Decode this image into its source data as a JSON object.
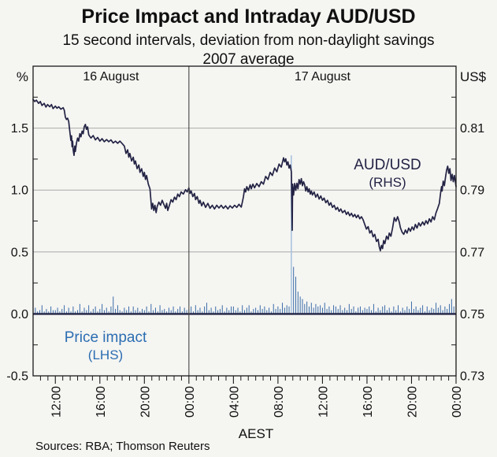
{
  "header": {
    "title": "Price Impact and Intraday AUD/USD",
    "subtitle_lines": [
      "15 second intervals, deviation from non-daylight savings",
      "2007 average"
    ]
  },
  "footer": {
    "sources": "Sources: RBA; Thomson Reuters"
  },
  "colors": {
    "background": "#f5f5f2",
    "border": "#1a1a1a",
    "gridline": "#aaaaaa",
    "divider": "#444444",
    "aud_line": "#232345",
    "impact_spike": "#3a6ca8",
    "impact_big_spike": "#a9c3de",
    "impact_label": "#2c6db1",
    "zero_line": "#232345",
    "text": "#101010"
  },
  "chart_data": {
    "type": "line",
    "title": "Price Impact and Intraday AUD/USD",
    "subtitle": "15 second intervals, deviation from non-daylight savings 2007 average",
    "xlabel": "AEST",
    "x_axis": {
      "label": "AEST",
      "hours_range": [
        10,
        48
      ],
      "hours_reference": "hours from 00:00 16 August",
      "major_tick_hours": [
        12,
        16,
        20,
        24,
        28,
        32,
        36,
        40,
        44,
        48
      ],
      "major_tick_labels": [
        "12:00",
        "16:00",
        "20:00",
        "00:00",
        "04:00",
        "08:00",
        "12:00",
        "16:00",
        "20:00",
        "00:00"
      ],
      "minor_tick_step_hours": 0.6667,
      "divider_at_hour": 24,
      "day_labels": [
        {
          "text": "16 August",
          "span_hours": [
            10,
            24
          ]
        },
        {
          "text": "17 August",
          "span_hours": [
            24,
            48
          ]
        }
      ]
    },
    "left_axis": {
      "title": "%",
      "range": [
        -0.5,
        2.0
      ],
      "gridline_values": [
        0.0,
        0.5,
        1.0,
        1.5
      ],
      "tick_labels": [
        {
          "value": 1.5,
          "label": "1.5"
        },
        {
          "value": 1.0,
          "label": "1.0"
        },
        {
          "value": 0.5,
          "label": "0.5"
        },
        {
          "value": 0.0,
          "label": "0.0"
        },
        {
          "value": -0.5,
          "label": "-0.5"
        }
      ],
      "minor_tick_values": [
        1.75,
        1.25,
        0.75,
        0.25,
        -0.25
      ]
    },
    "right_axis": {
      "title": "US$",
      "range": [
        0.73,
        0.83
      ],
      "tick_labels": [
        {
          "value": 0.81,
          "label": "0.81"
        },
        {
          "value": 0.79,
          "label": "0.79"
        },
        {
          "value": 0.77,
          "label": "0.77"
        },
        {
          "value": 0.75,
          "label": "0.75"
        },
        {
          "value": 0.73,
          "label": "0.73"
        }
      ],
      "minor_tick_values": [
        0.82,
        0.8,
        0.78,
        0.76,
        0.74
      ]
    },
    "series": [
      {
        "name": "aud-usd",
        "label": "AUD/USD",
        "sub_label": "(RHS)",
        "axis": "right",
        "style": "line",
        "t": [
          10.0,
          10.15,
          10.3,
          10.5,
          10.65,
          10.8,
          11.0,
          11.15,
          11.3,
          11.5,
          11.65,
          11.8,
          12.0,
          12.15,
          12.3,
          12.5,
          12.7,
          12.8,
          12.9,
          13.0,
          13.1,
          13.2,
          13.3,
          13.4,
          13.45,
          13.5,
          13.55,
          13.6,
          13.68,
          13.75,
          13.8,
          13.9,
          14.0,
          14.1,
          14.2,
          14.3,
          14.4,
          14.5,
          14.6,
          14.7,
          14.8,
          14.9,
          15.0,
          15.2,
          15.4,
          15.6,
          15.8,
          16.0,
          16.2,
          16.4,
          16.6,
          16.8,
          17.0,
          17.2,
          17.4,
          17.6,
          17.8,
          18.0,
          18.2,
          18.35,
          18.5,
          18.6,
          18.7,
          18.85,
          19.0,
          19.1,
          19.2,
          19.35,
          19.5,
          19.6,
          19.75,
          19.9,
          20.0,
          20.1,
          20.2,
          20.35,
          20.5,
          20.6,
          20.65,
          20.75,
          20.85,
          20.95,
          21.05,
          21.15,
          21.3,
          21.45,
          21.6,
          21.75,
          21.9,
          22.0,
          22.1,
          22.25,
          22.4,
          22.55,
          22.7,
          22.85,
          23.0,
          23.15,
          23.3,
          23.5,
          23.7,
          23.85,
          24.0,
          24.1,
          24.2,
          24.35,
          24.5,
          24.6,
          24.75,
          24.9,
          25.0,
          25.15,
          25.3,
          25.5,
          25.7,
          25.9,
          26.1,
          26.3,
          26.5,
          26.7,
          26.9,
          27.1,
          27.3,
          27.5,
          27.7,
          27.9,
          28.1,
          28.3,
          28.5,
          28.7,
          28.8,
          28.9,
          29.0,
          29.1,
          29.2,
          29.35,
          29.5,
          29.6,
          29.75,
          29.9,
          30.1,
          30.3,
          30.5,
          30.7,
          30.9,
          31.1,
          31.3,
          31.5,
          31.7,
          31.9,
          32.1,
          32.3,
          32.5,
          32.6,
          32.7,
          32.8,
          32.9,
          33.0,
          33.1,
          33.2,
          33.28,
          33.32,
          33.4,
          33.5,
          33.6,
          33.7,
          33.8,
          33.9,
          34.0,
          34.1,
          34.2,
          34.3,
          34.4,
          34.5,
          34.6,
          34.7,
          34.8,
          34.9,
          35.0,
          35.1,
          35.25,
          35.4,
          35.55,
          35.7,
          35.85,
          36.0,
          36.15,
          36.3,
          36.45,
          36.6,
          36.75,
          36.9,
          37.05,
          37.2,
          37.35,
          37.5,
          37.65,
          37.8,
          38.0,
          38.15,
          38.3,
          38.45,
          38.6,
          38.75,
          38.9,
          39.05,
          39.2,
          39.35,
          39.5,
          39.65,
          39.8,
          39.95,
          40.1,
          40.25,
          40.4,
          40.55,
          40.7,
          40.85,
          41.0,
          41.1,
          41.2,
          41.3,
          41.4,
          41.5,
          41.6,
          41.75,
          41.9,
          42.0,
          42.15,
          42.3,
          42.45,
          42.6,
          42.75,
          42.9,
          43.0,
          43.15,
          43.3,
          43.45,
          43.6,
          43.75,
          43.9,
          44.05,
          44.2,
          44.35,
          44.5,
          44.65,
          44.8,
          45.0,
          45.15,
          45.3,
          45.45,
          45.6,
          45.75,
          45.9,
          46.05,
          46.2,
          46.35,
          46.5,
          46.6,
          46.7,
          46.75,
          46.85,
          46.95,
          47.05,
          47.15,
          47.25,
          47.35,
          47.45,
          47.55,
          47.65,
          47.75,
          47.85,
          47.95,
          48.0
        ],
        "v": [
          0.8193,
          0.8186,
          0.819,
          0.818,
          0.8186,
          0.8173,
          0.818,
          0.8168,
          0.8176,
          0.8169,
          0.8176,
          0.8163,
          0.8171,
          0.8164,
          0.8169,
          0.8161,
          0.8166,
          0.8158,
          0.8135,
          0.8128,
          0.8132,
          0.8122,
          0.809,
          0.806,
          0.8075,
          0.804,
          0.8058,
          0.803,
          0.8012,
          0.8042,
          0.8025,
          0.8052,
          0.8068,
          0.8058,
          0.8082,
          0.8072,
          0.809,
          0.8082,
          0.8105,
          0.8112,
          0.8096,
          0.8104,
          0.8078,
          0.8068,
          0.8076,
          0.8062,
          0.807,
          0.8058,
          0.8066,
          0.8056,
          0.8063,
          0.8056,
          0.8062,
          0.8052,
          0.8058,
          0.8051,
          0.8058,
          0.805,
          0.8042,
          0.8018,
          0.803,
          0.8006,
          0.8018,
          0.7994,
          0.8006,
          0.7984,
          0.7994,
          0.7969,
          0.7981,
          0.7957,
          0.7969,
          0.7944,
          0.7957,
          0.7934,
          0.7947,
          0.7919,
          0.7904,
          0.7861,
          0.7839,
          0.7857,
          0.7834,
          0.7851,
          0.7827,
          0.7847,
          0.7861,
          0.7851,
          0.7867,
          0.7854,
          0.7841,
          0.7857,
          0.7834,
          0.7851,
          0.7869,
          0.7861,
          0.7877,
          0.7869,
          0.7887,
          0.7879,
          0.7894,
          0.7887,
          0.7901,
          0.7894,
          0.7907,
          0.7889,
          0.7897,
          0.7879,
          0.7889,
          0.7869,
          0.7879,
          0.7857,
          0.7867,
          0.7849,
          0.7861,
          0.7844,
          0.7857,
          0.7841,
          0.7851,
          0.7839,
          0.7851,
          0.7842,
          0.7851,
          0.7841,
          0.7849,
          0.7839,
          0.7849,
          0.7842,
          0.7851,
          0.7844,
          0.7854,
          0.7845,
          0.7861,
          0.7879,
          0.7904,
          0.7894,
          0.7911,
          0.7899,
          0.7917,
          0.7904,
          0.7919,
          0.7907,
          0.7921,
          0.7911,
          0.7927,
          0.7919,
          0.7944,
          0.7934,
          0.7957,
          0.7947,
          0.7971,
          0.7959,
          0.7984,
          0.7974,
          0.8004,
          0.7991,
          0.8001,
          0.7981,
          0.7991,
          0.7971,
          0.7981,
          0.7959,
          0.777,
          0.7919,
          0.7884,
          0.7921,
          0.7899,
          0.7922,
          0.7904,
          0.7934,
          0.7919,
          0.7937,
          0.7914,
          0.7927,
          0.7917,
          0.7897,
          0.7911,
          0.7894,
          0.7904,
          0.7887,
          0.7897,
          0.7884,
          0.7894,
          0.7877,
          0.7887,
          0.7871,
          0.7881,
          0.7867,
          0.7874,
          0.7859,
          0.7867,
          0.7851,
          0.7859,
          0.7844,
          0.7851,
          0.7837,
          0.7844,
          0.7831,
          0.7839,
          0.7827,
          0.7834,
          0.7821,
          0.7829,
          0.7817,
          0.7825,
          0.7814,
          0.7821,
          0.7811,
          0.7819,
          0.7807,
          0.7814,
          0.7804,
          0.7789,
          0.7774,
          0.7782,
          0.7761,
          0.7769,
          0.7749,
          0.7757,
          0.7734,
          0.7741,
          0.7717,
          0.7704,
          0.7721,
          0.7711,
          0.7737,
          0.7727,
          0.7751,
          0.7741,
          0.7761,
          0.7751,
          0.7777,
          0.7811,
          0.7799,
          0.7814,
          0.7797,
          0.7779,
          0.7764,
          0.7757,
          0.7771,
          0.7761,
          0.7777,
          0.7767,
          0.7781,
          0.7771,
          0.7789,
          0.7777,
          0.7794,
          0.7784,
          0.7797,
          0.7787,
          0.7801,
          0.7791,
          0.7807,
          0.7797,
          0.7814,
          0.7804,
          0.7827,
          0.7841,
          0.7857,
          0.7887,
          0.7911,
          0.7897,
          0.7929,
          0.7914,
          0.7941,
          0.7964,
          0.7977,
          0.7954,
          0.7969,
          0.7931,
          0.7951,
          0.7927,
          0.7947,
          0.7924,
          0.7911
        ]
      },
      {
        "name": "price-impact",
        "label": "Price impact",
        "sub_label": "(LHS)",
        "axis": "left",
        "style": "spikes",
        "t_start": 10.0,
        "t_step": 0.2,
        "big_spike_threshold": 0.5,
        "v": [
          0.02,
          0.05,
          0.02,
          0.03,
          0.07,
          0.02,
          0.04,
          0.02,
          0.06,
          0.03,
          0.03,
          0.05,
          0.02,
          0.04,
          0.07,
          0.02,
          0.05,
          0.02,
          0.06,
          0.02,
          0.03,
          0.08,
          0.02,
          0.05,
          0.03,
          0.07,
          0.02,
          0.04,
          0.06,
          0.02,
          0.04,
          0.08,
          0.03,
          0.05,
          0.02,
          0.06,
          0.14,
          0.04,
          0.07,
          0.03,
          0.02,
          0.05,
          0.03,
          0.06,
          0.02,
          0.06,
          0.03,
          0.05,
          0.02,
          0.04,
          0.03,
          0.06,
          0.02,
          0.08,
          0.03,
          0.05,
          0.02,
          0.07,
          0.03,
          0.04,
          0.02,
          0.05,
          0.03,
          0.06,
          0.02,
          0.04,
          0.06,
          0.02,
          0.05,
          0.03,
          0.04,
          0.06,
          0.02,
          0.07,
          0.03,
          0.05,
          0.02,
          0.06,
          0.09,
          0.03,
          0.05,
          0.02,
          0.06,
          0.03,
          0.04,
          0.07,
          0.02,
          0.05,
          0.03,
          0.06,
          0.06,
          0.03,
          0.05,
          0.02,
          0.07,
          0.03,
          0.05,
          0.07,
          0.02,
          0.04,
          0.05,
          0.03,
          0.07,
          0.04,
          0.06,
          0.03,
          0.05,
          0.02,
          0.08,
          0.04,
          0.06,
          0.04,
          0.09,
          0.05,
          0.07,
          0.06,
          1.28,
          0.38,
          0.3,
          0.18,
          0.14,
          0.12,
          0.08,
          0.1,
          0.06,
          0.09,
          0.05,
          0.08,
          0.06,
          0.07,
          0.05,
          0.09,
          0.04,
          0.06,
          0.03,
          0.07,
          0.06,
          0.04,
          0.07,
          0.03,
          0.05,
          0.03,
          0.08,
          0.04,
          0.06,
          0.02,
          0.05,
          0.06,
          0.03,
          0.05,
          0.04,
          0.06,
          0.03,
          0.08,
          0.02,
          0.05,
          0.03,
          0.06,
          0.07,
          0.03,
          0.05,
          0.02,
          0.06,
          0.03,
          0.07,
          0.02,
          0.05,
          0.03,
          0.06,
          0.04,
          0.1,
          0.04,
          0.06,
          0.03,
          0.05,
          0.07,
          0.02,
          0.06,
          0.03,
          0.05,
          0.04,
          0.09,
          0.05,
          0.07,
          0.03,
          0.06,
          0.04,
          0.08,
          0.12,
          0.06
        ]
      }
    ]
  }
}
